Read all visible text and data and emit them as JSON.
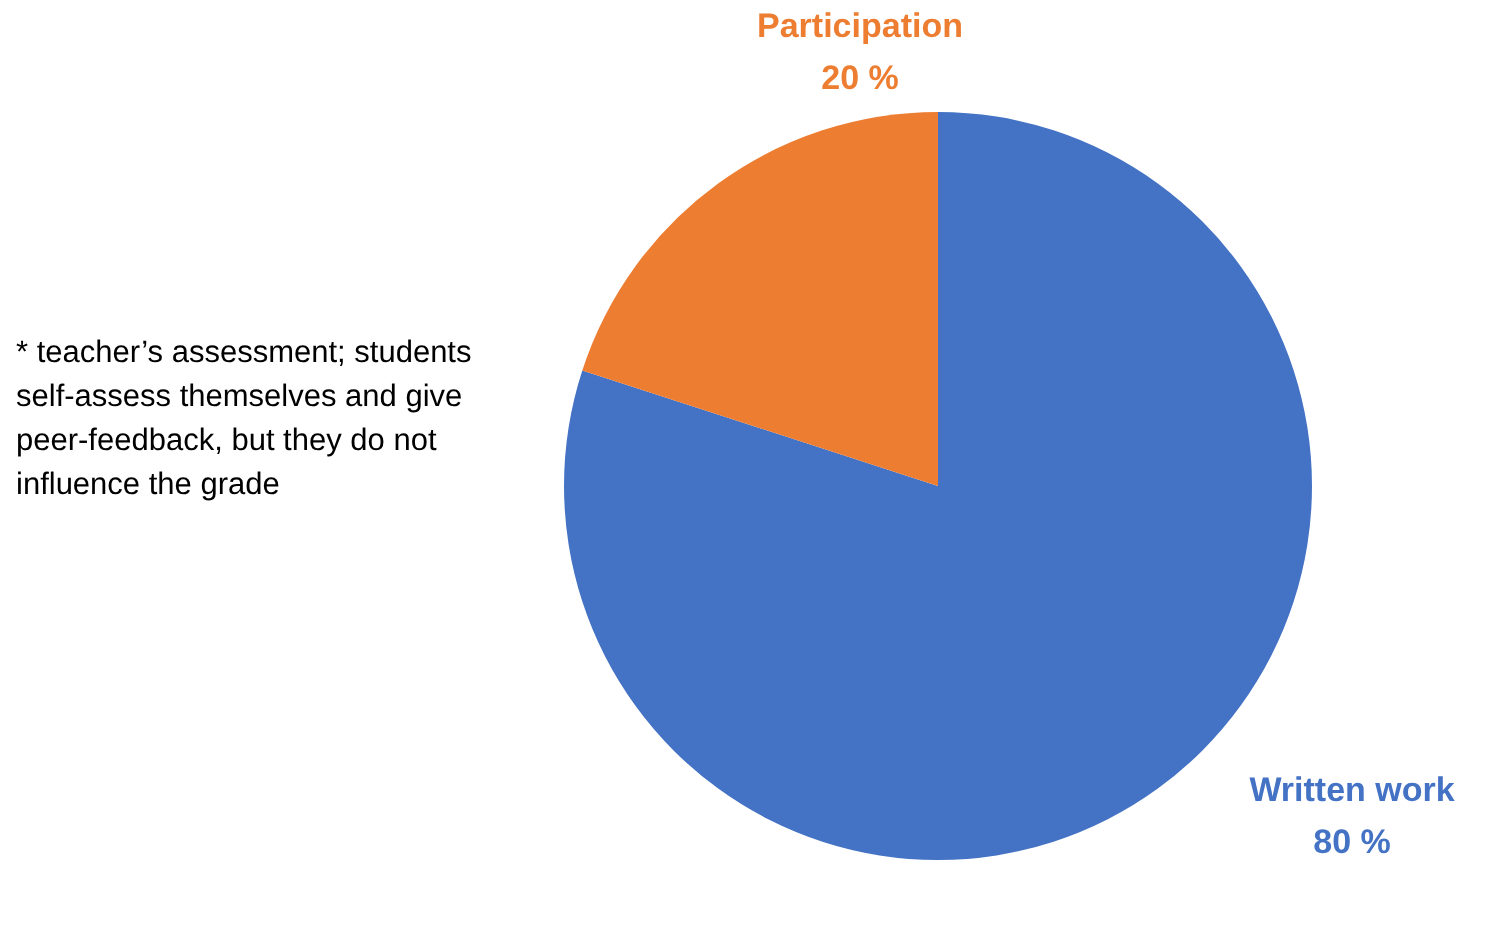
{
  "chart_data": {
    "type": "pie",
    "categories": [
      "Written work",
      "Participation"
    ],
    "values": [
      80,
      20
    ],
    "colors": [
      "#4472c4",
      "#ed7d31"
    ],
    "value_labels": [
      "80 %",
      "20 %"
    ],
    "legend": false,
    "annotations": [
      "* teacher’s assessment; students self-assess themselves and give peer-feedback, but they do not influence the grade"
    ]
  }
}
